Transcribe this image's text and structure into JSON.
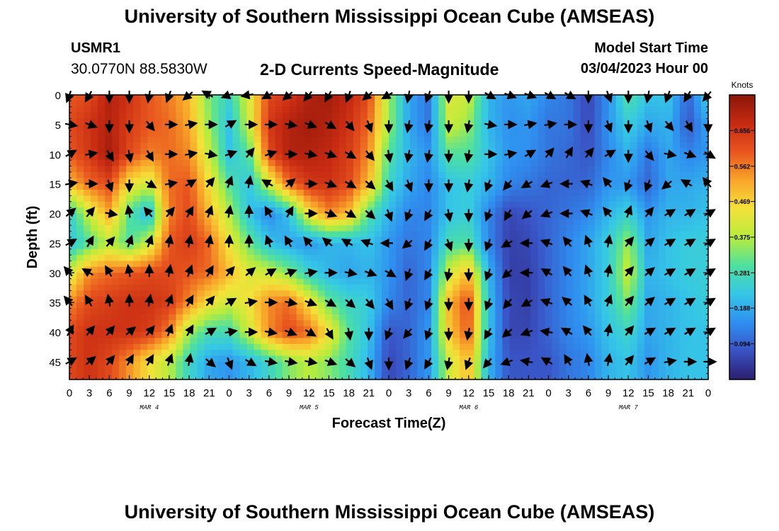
{
  "header": {
    "title": "University of Southern Mississippi Ocean Cube (AMSEAS)",
    "station_id": "USMR1",
    "station_coords": "30.0770N  88.5830W",
    "chart_heading": "2-D Currents Speed-Magnitude",
    "model_start_label": "Model Start Time",
    "model_start_value": "03/04/2023 Hour 00"
  },
  "footer": {
    "title": "University of Southern Mississippi Ocean Cube (AMSEAS)"
  },
  "chart_data": {
    "type": "heatmap",
    "title": "2-D Currents Speed-Magnitude",
    "xlabel": "Forecast Time(Z)",
    "ylabel": "Depth (ft)",
    "x_ticks": [
      "0",
      "3",
      "6",
      "9",
      "12",
      "15",
      "18",
      "21",
      "0",
      "3",
      "6",
      "9",
      "12",
      "15",
      "18",
      "21",
      "0",
      "3",
      "6",
      "9",
      "12",
      "15",
      "18",
      "21",
      "0",
      "3",
      "6",
      "9",
      "12",
      "15",
      "18",
      "21",
      "0"
    ],
    "x_range_hours": [
      0,
      96
    ],
    "date_labels": [
      {
        "label": "MAR 4",
        "hour": 12
      },
      {
        "label": "MAR 5",
        "hour": 36
      },
      {
        "label": "MAR 6",
        "hour": 60
      },
      {
        "label": "MAR 7",
        "hour": 84
      }
    ],
    "y_ticks": [
      "0",
      "5",
      "10",
      "15",
      "20",
      "25",
      "30",
      "35",
      "40",
      "45"
    ],
    "y_range_ft": [
      0,
      48
    ],
    "colorbar": {
      "unit": "Knots",
      "range": [
        0.0,
        0.75
      ],
      "tick_labels": [
        "0.094",
        "0.188",
        "0.281",
        "0.375",
        "0.469",
        "0.562",
        "0.656"
      ],
      "tick_values": [
        0.094,
        0.188,
        0.281,
        0.375,
        0.469,
        0.562,
        0.656
      ],
      "colors": [
        "#2b1e6e",
        "#3a52c4",
        "#2f8ff0",
        "#35c7e6",
        "#4de0a0",
        "#b8ec3c",
        "#f4e23a",
        "#f8a52a",
        "#e8551e",
        "#c62a12",
        "#8a1608"
      ]
    },
    "depth_levels_ft": [
      0,
      5,
      10,
      15,
      20,
      25,
      30,
      35,
      40,
      45
    ],
    "hours": [
      0,
      3,
      6,
      9,
      12,
      15,
      18,
      21,
      24,
      27,
      30,
      33,
      36,
      39,
      42,
      45,
      48,
      51,
      54,
      57,
      60,
      63,
      66,
      69,
      72,
      75,
      78,
      81,
      84,
      87,
      90,
      93,
      96
    ],
    "speed_knots": [
      [
        0.6,
        0.62,
        0.7,
        0.66,
        0.6,
        0.56,
        0.5,
        0.33,
        0.26,
        0.42,
        0.62,
        0.65,
        0.7,
        0.72,
        0.68,
        0.62,
        0.36,
        0.18,
        0.12,
        0.42,
        0.4,
        0.2,
        0.16,
        0.18,
        0.14,
        0.12,
        0.06,
        0.15,
        0.3,
        0.22,
        0.22,
        0.1,
        0.25
      ],
      [
        0.62,
        0.66,
        0.7,
        0.64,
        0.6,
        0.58,
        0.52,
        0.35,
        0.22,
        0.4,
        0.65,
        0.7,
        0.72,
        0.7,
        0.66,
        0.58,
        0.36,
        0.18,
        0.12,
        0.4,
        0.35,
        0.2,
        0.15,
        0.16,
        0.12,
        0.12,
        0.06,
        0.16,
        0.24,
        0.18,
        0.2,
        0.08,
        0.18
      ],
      [
        0.6,
        0.65,
        0.72,
        0.62,
        0.56,
        0.58,
        0.55,
        0.4,
        0.22,
        0.3,
        0.62,
        0.7,
        0.7,
        0.68,
        0.64,
        0.55,
        0.3,
        0.2,
        0.16,
        0.3,
        0.3,
        0.22,
        0.16,
        0.15,
        0.12,
        0.1,
        0.08,
        0.14,
        0.2,
        0.12,
        0.18,
        0.14,
        0.16
      ],
      [
        0.5,
        0.58,
        0.62,
        0.45,
        0.4,
        0.58,
        0.6,
        0.45,
        0.3,
        0.22,
        0.4,
        0.58,
        0.65,
        0.66,
        0.62,
        0.5,
        0.26,
        0.18,
        0.14,
        0.22,
        0.24,
        0.2,
        0.14,
        0.12,
        0.1,
        0.1,
        0.1,
        0.16,
        0.16,
        0.1,
        0.18,
        0.18,
        0.2
      ],
      [
        0.25,
        0.4,
        0.52,
        0.3,
        0.2,
        0.56,
        0.62,
        0.5,
        0.38,
        0.22,
        0.14,
        0.22,
        0.45,
        0.55,
        0.5,
        0.3,
        0.2,
        0.14,
        0.14,
        0.22,
        0.24,
        0.14,
        0.06,
        0.08,
        0.1,
        0.12,
        0.14,
        0.2,
        0.25,
        0.16,
        0.2,
        0.2,
        0.22
      ],
      [
        0.22,
        0.3,
        0.38,
        0.3,
        0.4,
        0.6,
        0.64,
        0.58,
        0.44,
        0.32,
        0.22,
        0.18,
        0.16,
        0.2,
        0.2,
        0.22,
        0.16,
        0.12,
        0.14,
        0.28,
        0.3,
        0.14,
        0.05,
        0.06,
        0.1,
        0.14,
        0.18,
        0.24,
        0.36,
        0.18,
        0.22,
        0.24,
        0.24
      ],
      [
        0.4,
        0.55,
        0.58,
        0.6,
        0.62,
        0.62,
        0.6,
        0.58,
        0.5,
        0.42,
        0.4,
        0.34,
        0.25,
        0.2,
        0.18,
        0.2,
        0.16,
        0.1,
        0.14,
        0.4,
        0.5,
        0.2,
        0.05,
        0.05,
        0.1,
        0.14,
        0.18,
        0.24,
        0.4,
        0.2,
        0.22,
        0.24,
        0.24
      ],
      [
        0.55,
        0.62,
        0.64,
        0.66,
        0.66,
        0.64,
        0.55,
        0.45,
        0.4,
        0.45,
        0.55,
        0.58,
        0.45,
        0.32,
        0.26,
        0.24,
        0.14,
        0.1,
        0.14,
        0.5,
        0.62,
        0.22,
        0.06,
        0.05,
        0.1,
        0.14,
        0.18,
        0.24,
        0.34,
        0.18,
        0.2,
        0.22,
        0.24
      ],
      [
        0.62,
        0.66,
        0.66,
        0.66,
        0.64,
        0.56,
        0.36,
        0.28,
        0.28,
        0.4,
        0.55,
        0.62,
        0.58,
        0.45,
        0.3,
        0.22,
        0.08,
        0.1,
        0.16,
        0.48,
        0.6,
        0.22,
        0.06,
        0.06,
        0.1,
        0.14,
        0.16,
        0.22,
        0.26,
        0.18,
        0.2,
        0.22,
        0.22
      ],
      [
        0.62,
        0.66,
        0.62,
        0.54,
        0.45,
        0.38,
        0.26,
        0.18,
        0.16,
        0.2,
        0.26,
        0.34,
        0.38,
        0.34,
        0.28,
        0.2,
        0.06,
        0.1,
        0.16,
        0.4,
        0.5,
        0.2,
        0.08,
        0.08,
        0.08,
        0.12,
        0.14,
        0.2,
        0.22,
        0.16,
        0.2,
        0.22,
        0.22
      ]
    ],
    "arrow_angle_deg": [
      [
        200,
        210,
        180,
        180,
        190,
        200,
        230,
        300,
        250,
        260,
        240,
        230,
        220,
        210,
        200,
        230,
        240,
        190,
        200,
        180,
        180,
        120,
        110,
        110,
        120,
        120,
        180,
        160,
        180,
        190,
        200,
        210,
        220
      ],
      [
        100,
        110,
        180,
        180,
        140,
        90,
        80,
        90,
        60,
        90,
        90,
        100,
        110,
        120,
        140,
        160,
        180,
        190,
        190,
        180,
        190,
        100,
        90,
        80,
        80,
        90,
        180,
        160,
        180,
        160,
        140,
        150,
        180
      ],
      [
        60,
        80,
        150,
        170,
        150,
        90,
        80,
        100,
        70,
        40,
        70,
        90,
        100,
        110,
        120,
        140,
        170,
        190,
        190,
        180,
        190,
        90,
        80,
        60,
        40,
        30,
        40,
        60,
        180,
        140,
        100,
        110,
        120
      ],
      [
        80,
        90,
        160,
        180,
        120,
        80,
        60,
        40,
        20,
        10,
        300,
        50,
        90,
        110,
        120,
        130,
        150,
        160,
        180,
        180,
        190,
        200,
        220,
        240,
        250,
        270,
        290,
        320,
        200,
        200,
        230,
        300,
        320
      ],
      [
        50,
        40,
        100,
        350,
        320,
        40,
        30,
        20,
        10,
        0,
        330,
        30,
        90,
        110,
        120,
        130,
        160,
        200,
        210,
        170,
        180,
        200,
        210,
        230,
        250,
        270,
        290,
        320,
        20,
        40,
        60,
        60,
        60
      ],
      [
        60,
        30,
        40,
        20,
        20,
        10,
        10,
        10,
        5,
        0,
        340,
        330,
        320,
        310,
        300,
        290,
        270,
        230,
        210,
        160,
        180,
        200,
        240,
        270,
        290,
        320,
        340,
        10,
        40,
        50,
        60,
        60,
        60
      ],
      [
        320,
        300,
        330,
        350,
        0,
        10,
        20,
        30,
        40,
        50,
        60,
        70,
        80,
        90,
        100,
        110,
        120,
        200,
        210,
        190,
        180,
        200,
        230,
        270,
        300,
        320,
        340,
        10,
        40,
        50,
        60,
        60,
        60
      ],
      [
        320,
        330,
        350,
        0,
        10,
        20,
        30,
        40,
        60,
        80,
        90,
        100,
        110,
        120,
        130,
        140,
        150,
        200,
        200,
        180,
        180,
        200,
        220,
        240,
        290,
        310,
        330,
        20,
        40,
        50,
        60,
        60,
        60
      ],
      [
        30,
        40,
        40,
        50,
        40,
        20,
        30,
        60,
        80,
        90,
        100,
        110,
        120,
        150,
        170,
        180,
        200,
        220,
        200,
        180,
        190,
        210,
        230,
        250,
        280,
        300,
        320,
        10,
        40,
        60,
        60,
        60,
        60
      ],
      [
        60,
        50,
        40,
        30,
        30,
        20,
        10,
        130,
        160,
        120,
        100,
        100,
        100,
        110,
        130,
        160,
        180,
        200,
        210,
        190,
        200,
        220,
        250,
        280,
        300,
        330,
        350,
        10,
        40,
        60,
        80,
        90,
        90
      ]
    ]
  }
}
